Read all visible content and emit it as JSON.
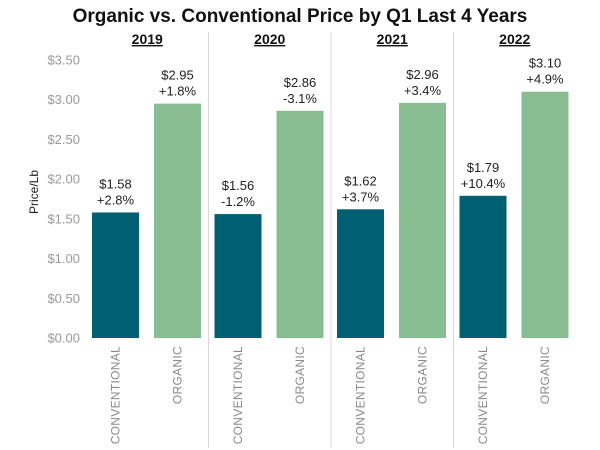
{
  "chart_data": {
    "type": "bar",
    "title": "Organic vs. Conventional Price by Q1 Last 4 Years",
    "ylabel": "Price/Lb",
    "xlabel": "",
    "ylim": [
      0,
      3.6
    ],
    "yticks": [
      0,
      0.5,
      1.0,
      1.5,
      2.0,
      2.5,
      3.0,
      3.5
    ],
    "ytick_labels": [
      "$0.00",
      "$0.50",
      "$1.00",
      "$1.50",
      "$2.00",
      "$2.50",
      "$3.00",
      "$3.50"
    ],
    "grid": false,
    "colors": {
      "conventional": "#005f73",
      "organic": "#88bd92"
    },
    "groups": [
      {
        "year": "2019",
        "bars": [
          {
            "category": "CONVENTIONAL",
            "value": 1.58,
            "price_label": "$1.58",
            "change_label": "+2.8%"
          },
          {
            "category": "ORGANIC",
            "value": 2.95,
            "price_label": "$2.95",
            "change_label": "+1.8%"
          }
        ]
      },
      {
        "year": "2020",
        "bars": [
          {
            "category": "CONVENTIONAL",
            "value": 1.56,
            "price_label": "$1.56",
            "change_label": "-1.2%"
          },
          {
            "category": "ORGANIC",
            "value": 2.86,
            "price_label": "$2.86",
            "change_label": "-3.1%"
          }
        ]
      },
      {
        "year": "2021",
        "bars": [
          {
            "category": "CONVENTIONAL",
            "value": 1.62,
            "price_label": "$1.62",
            "change_label": "+3.7%"
          },
          {
            "category": "ORGANIC",
            "value": 2.96,
            "price_label": "$2.96",
            "change_label": "+3.4%"
          }
        ]
      },
      {
        "year": "2022",
        "bars": [
          {
            "category": "CONVENTIONAL",
            "value": 1.79,
            "price_label": "$1.79",
            "change_label": "+10.4%"
          },
          {
            "category": "ORGANIC",
            "value": 3.1,
            "price_label": "$3.10",
            "change_label": "+4.9%"
          }
        ]
      }
    ]
  }
}
